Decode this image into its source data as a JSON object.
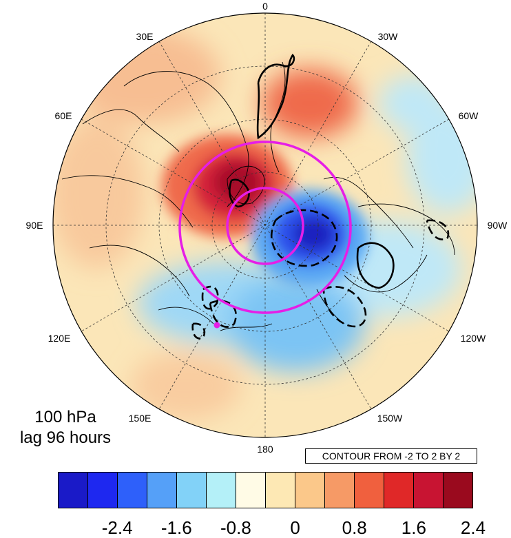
{
  "map": {
    "projection": "north-polar-stereographic",
    "longitude_labels": {
      "lon_0": "0",
      "lon_30e": "30E",
      "lon_30w": "30W",
      "lon_60e": "60E",
      "lon_60w": "60W",
      "lon_90e": "90E",
      "lon_90w": "90W",
      "lon_120e": "120E",
      "lon_120w": "120W",
      "lon_150e": "150E",
      "lon_150w": "150W",
      "lon_180": "180"
    },
    "fill_colors": {
      "strong_positive": "#b2182b",
      "positive": "#ef6a4c",
      "weak_positive": "#fddbc7",
      "weak_negative": "#bfe8f7",
      "negative": "#5ab4f0",
      "strong_negative": "#2040e8",
      "magenta": "#e61ee6"
    }
  },
  "labels": {
    "level": "100 hPa",
    "lag": "lag 96 hours",
    "contour_info": "CONTOUR FROM -2 TO 2 BY 2"
  },
  "colorbar": {
    "colors": [
      "#1a1ac8",
      "#1e28f0",
      "#2e60fa",
      "#55a0f8",
      "#82d2f8",
      "#b4f0f8",
      "#fffbe6",
      "#fde8b4",
      "#fbc88a",
      "#f69a66",
      "#f0603e",
      "#e02828",
      "#c81432",
      "#9a0a1e"
    ],
    "tick_labels": [
      "-2.4",
      "-1.6",
      "-0.8",
      "0",
      "0.8",
      "1.6",
      "2.4"
    ]
  }
}
